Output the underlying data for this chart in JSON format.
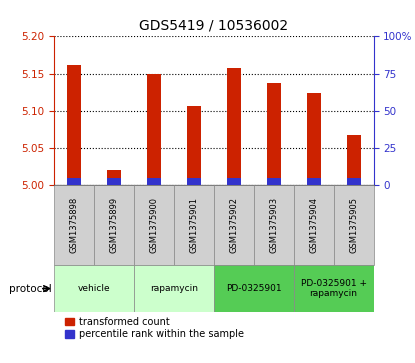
{
  "title": "GDS5419 / 10536002",
  "samples": [
    "GSM1375898",
    "GSM1375899",
    "GSM1375900",
    "GSM1375901",
    "GSM1375902",
    "GSM1375903",
    "GSM1375904",
    "GSM1375905"
  ],
  "transformed_count": [
    5.161,
    5.02,
    5.15,
    5.107,
    5.157,
    5.137,
    5.124,
    5.068
  ],
  "percentile_rank_pct": [
    5,
    5,
    5,
    5,
    5,
    5,
    5,
    5
  ],
  "ylim_left": [
    5.0,
    5.2
  ],
  "ylim_right": [
    0,
    100
  ],
  "yticks_left": [
    5.0,
    5.05,
    5.1,
    5.15,
    5.2
  ],
  "yticks_right": [
    0,
    25,
    50,
    75,
    100
  ],
  "ytick_labels_right": [
    "0",
    "25",
    "50",
    "75",
    "100%"
  ],
  "bar_color_red": "#cc2200",
  "bar_color_blue": "#3333cc",
  "protocols": [
    {
      "label": "vehicle",
      "color": "#ccffcc",
      "span": [
        0,
        2
      ]
    },
    {
      "label": "rapamycin",
      "color": "#ccffcc",
      "span": [
        2,
        4
      ]
    },
    {
      "label": "PD-0325901",
      "color": "#55cc55",
      "span": [
        4,
        6
      ]
    },
    {
      "label": "PD-0325901 +\nrapamycin",
      "color": "#55cc55",
      "span": [
        6,
        8
      ]
    }
  ],
  "protocol_label": "protocol",
  "legend_red": "transformed count",
  "legend_blue": "percentile rank within the sample",
  "bar_width": 0.35,
  "left_tick_color": "#cc2200",
  "right_tick_color": "#3333cc",
  "title_fontsize": 10,
  "tick_fontsize": 7.5,
  "sample_bg_color": "#d0d0d0",
  "sample_border_color": "#888888"
}
